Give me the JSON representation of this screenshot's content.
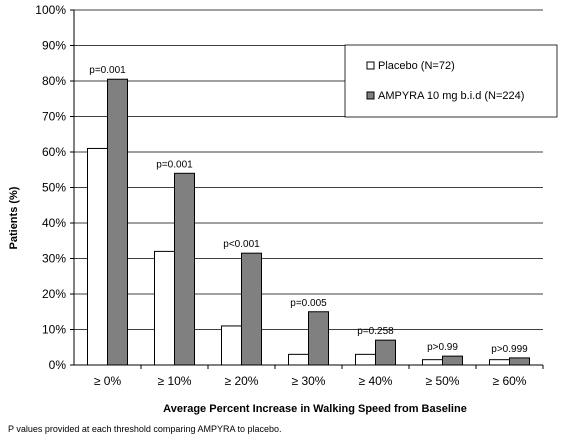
{
  "chart_data": {
    "type": "bar",
    "categories": [
      "≥ 0%",
      "≥ 10%",
      "≥ 20%",
      "≥ 30%",
      "≥ 40%",
      "≥ 50%",
      "≥ 60%"
    ],
    "series": [
      {
        "name": "Placebo (N=72)",
        "values": [
          61,
          32,
          11,
          3,
          3,
          1.5,
          1.5
        ],
        "color": "#ffffff"
      },
      {
        "name": "AMPYRA 10 mg b.i.d (N=224)",
        "values": [
          80.5,
          54,
          31.5,
          15,
          7,
          2.5,
          2
        ],
        "color": "#808080"
      }
    ],
    "p_values": [
      "p=0.001",
      "p=0.001",
      "p<0.001",
      "p=0.005",
      "p=0.258",
      "p>0.99",
      "p>0.999"
    ],
    "title": "",
    "xlabel": "Average Percent Increase in Walking Speed from Baseline",
    "ylabel": "Patients (%)",
    "ylim": [
      0,
      100
    ],
    "yticks": [
      "0%",
      "10%",
      "20%",
      "30%",
      "40%",
      "50%",
      "60%",
      "70%",
      "80%",
      "90%",
      "100%"
    ],
    "grid": true,
    "legend_position": "top-right"
  },
  "footnote": "P values provided at each threshold comparing AMPYRA to placebo."
}
